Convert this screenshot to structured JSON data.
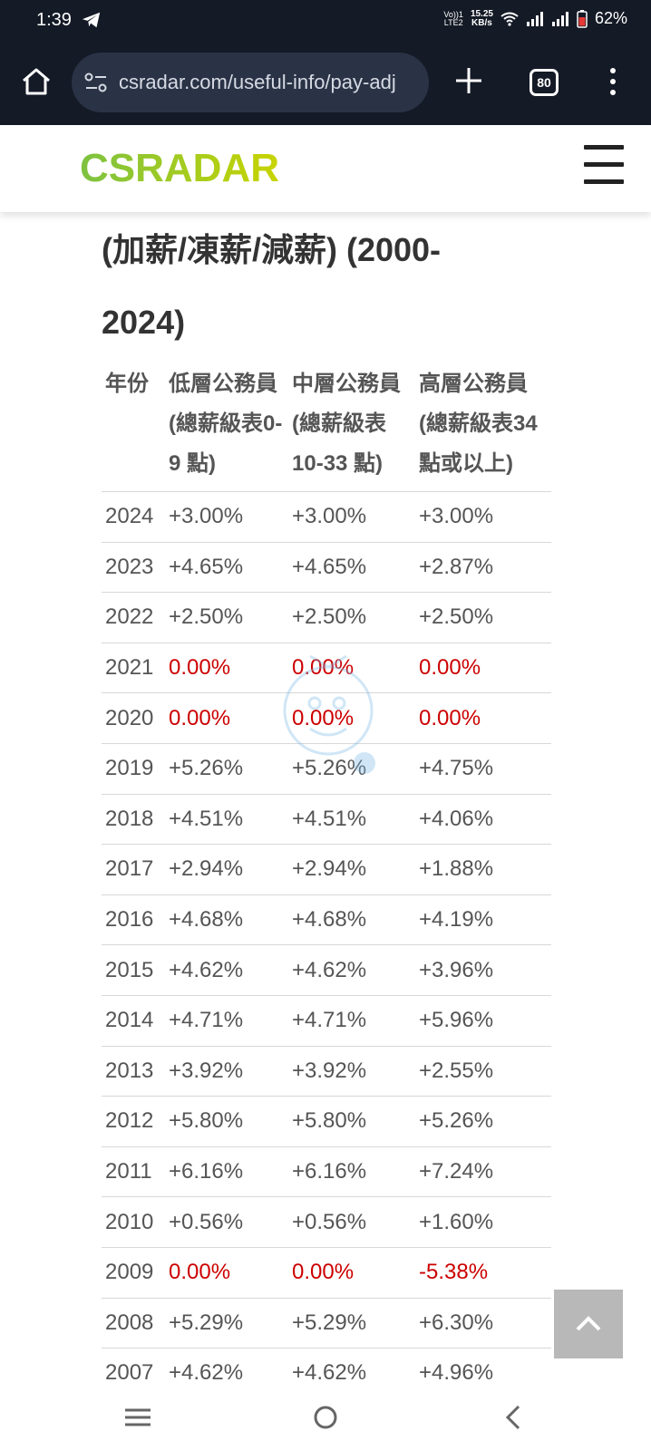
{
  "status_bar": {
    "time": "1:39",
    "volte": "Vo))1",
    "lte": "LTE2",
    "net_speed": "15.25",
    "net_unit": "KB/s",
    "battery": "62%"
  },
  "browser": {
    "url": "csradar.com/useful-info/pay-adj",
    "tab_count": "80"
  },
  "site": {
    "logo_text": "CSRADAR"
  },
  "page": {
    "title_line1": "(加薪/凍薪/減薪) (2000-",
    "title_line2": "2024)"
  },
  "table": {
    "headers": [
      "年份",
      "低層公務員(總薪級表0-9 點)",
      "中層公務員(總薪級表10-33 點)",
      "高層公務員(總薪級表34 點或以上)"
    ],
    "rows": [
      [
        "2024",
        "+3.00%",
        "+3.00%",
        "+3.00%"
      ],
      [
        "2023",
        "+4.65%",
        "+4.65%",
        "+2.87%"
      ],
      [
        "2022",
        "+2.50%",
        "+2.50%",
        "+2.50%"
      ],
      [
        "2021",
        "0.00%",
        "0.00%",
        "0.00%"
      ],
      [
        "2020",
        "0.00%",
        "0.00%",
        "0.00%"
      ],
      [
        "2019",
        "+5.26%",
        "+5.26%",
        "+4.75%"
      ],
      [
        "2018",
        "+4.51%",
        "+4.51%",
        "+4.06%"
      ],
      [
        "2017",
        "+2.94%",
        "+2.94%",
        "+1.88%"
      ],
      [
        "2016",
        "+4.68%",
        "+4.68%",
        "+4.19%"
      ],
      [
        "2015",
        "+4.62%",
        "+4.62%",
        "+3.96%"
      ],
      [
        "2014",
        "+4.71%",
        "+4.71%",
        "+5.96%"
      ],
      [
        "2013",
        "+3.92%",
        "+3.92%",
        "+2.55%"
      ],
      [
        "2012",
        "+5.80%",
        "+5.80%",
        "+5.26%"
      ],
      [
        "2011",
        "+6.16%",
        "+6.16%",
        "+7.24%"
      ],
      [
        "2010",
        "+0.56%",
        "+0.56%",
        "+1.60%"
      ],
      [
        "2009",
        "0.00%",
        "0.00%",
        "-5.38%"
      ],
      [
        "2008",
        "+5.29%",
        "+5.29%",
        "+6.30%"
      ],
      [
        "2007",
        "+4.62%",
        "+4.62%",
        "+4.96%"
      ]
    ]
  },
  "colors": {
    "highlight_red": "#cc0000",
    "logo_green": "#7dc242",
    "logo_yellow": "#c8d400",
    "status_bg": "#141a26"
  }
}
